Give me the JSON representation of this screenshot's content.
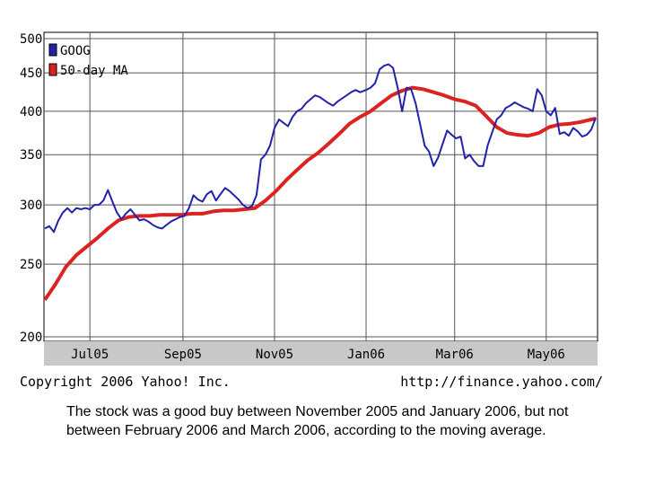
{
  "chart_data": {
    "type": "line",
    "title": "",
    "xlabel": "",
    "ylabel": "",
    "scale": "log",
    "ylim": [
      200,
      500
    ],
    "yticks": [
      "500",
      "450",
      "400",
      "350",
      "300",
      "250",
      "200"
    ],
    "ytick_values": [
      500,
      450,
      400,
      350,
      300,
      250,
      200
    ],
    "xticks": [
      "Jul05",
      "Sep05",
      "Nov05",
      "Jan06",
      "Mar06",
      "May06"
    ],
    "xtick_dates": [
      "2005-07-01",
      "2005-09-01",
      "2005-11-01",
      "2006-01-01",
      "2006-03-01",
      "2006-05-01"
    ],
    "grid": true,
    "legend_position": "top-left",
    "series": [
      {
        "name": "GOOG",
        "color": "#2222aa",
        "points": [
          [
            "2005-06-01",
            279
          ],
          [
            "2005-06-04",
            281
          ],
          [
            "2005-06-07",
            276
          ],
          [
            "2005-06-10",
            286
          ],
          [
            "2005-06-13",
            293
          ],
          [
            "2005-06-16",
            297
          ],
          [
            "2005-06-19",
            293
          ],
          [
            "2005-06-22",
            297
          ],
          [
            "2005-06-25",
            296
          ],
          [
            "2005-06-28",
            297
          ],
          [
            "2005-07-01",
            296
          ],
          [
            "2005-07-04",
            300
          ],
          [
            "2005-07-07",
            300
          ],
          [
            "2005-07-10",
            304
          ],
          [
            "2005-07-13",
            314
          ],
          [
            "2005-07-16",
            303
          ],
          [
            "2005-07-19",
            293
          ],
          [
            "2005-07-22",
            287
          ],
          [
            "2005-07-25",
            292
          ],
          [
            "2005-07-28",
            296
          ],
          [
            "2005-07-31",
            291
          ],
          [
            "2005-08-03",
            286
          ],
          [
            "2005-08-06",
            287
          ],
          [
            "2005-08-09",
            285
          ],
          [
            "2005-08-12",
            282
          ],
          [
            "2005-08-15",
            280
          ],
          [
            "2005-08-18",
            279
          ],
          [
            "2005-08-21",
            282
          ],
          [
            "2005-08-24",
            285
          ],
          [
            "2005-08-27",
            287
          ],
          [
            "2005-08-30",
            289
          ],
          [
            "2005-09-02",
            290
          ],
          [
            "2005-09-05",
            297
          ],
          [
            "2005-09-08",
            309
          ],
          [
            "2005-09-11",
            305
          ],
          [
            "2005-09-14",
            303
          ],
          [
            "2005-09-17",
            310
          ],
          [
            "2005-09-20",
            313
          ],
          [
            "2005-09-23",
            304
          ],
          [
            "2005-09-26",
            310
          ],
          [
            "2005-09-29",
            316
          ],
          [
            "2005-10-02",
            313
          ],
          [
            "2005-10-05",
            309
          ],
          [
            "2005-10-08",
            305
          ],
          [
            "2005-10-11",
            300
          ],
          [
            "2005-10-14",
            297
          ],
          [
            "2005-10-17",
            299
          ],
          [
            "2005-10-20",
            309
          ],
          [
            "2005-10-23",
            345
          ],
          [
            "2005-10-26",
            350
          ],
          [
            "2005-10-29",
            360
          ],
          [
            "2005-11-01",
            380
          ],
          [
            "2005-11-04",
            390
          ],
          [
            "2005-11-07",
            386
          ],
          [
            "2005-11-10",
            382
          ],
          [
            "2005-11-13",
            393
          ],
          [
            "2005-11-16",
            400
          ],
          [
            "2005-11-19",
            403
          ],
          [
            "2005-11-22",
            410
          ],
          [
            "2005-11-25",
            415
          ],
          [
            "2005-11-28",
            420
          ],
          [
            "2005-12-01",
            418
          ],
          [
            "2005-12-04",
            414
          ],
          [
            "2005-12-07",
            410
          ],
          [
            "2005-12-10",
            407
          ],
          [
            "2005-12-13",
            412
          ],
          [
            "2005-12-16",
            416
          ],
          [
            "2005-12-19",
            420
          ],
          [
            "2005-12-22",
            424
          ],
          [
            "2005-12-25",
            427
          ],
          [
            "2005-12-28",
            424
          ],
          [
            "2006-01-01",
            427
          ],
          [
            "2006-01-04",
            430
          ],
          [
            "2006-01-07",
            436
          ],
          [
            "2006-01-10",
            455
          ],
          [
            "2006-01-13",
            460
          ],
          [
            "2006-01-16",
            462
          ],
          [
            "2006-01-19",
            457
          ],
          [
            "2006-01-22",
            430
          ],
          [
            "2006-01-25",
            400
          ],
          [
            "2006-01-28",
            430
          ],
          [
            "2006-01-31",
            428
          ],
          [
            "2006-02-03",
            410
          ],
          [
            "2006-02-06",
            384
          ],
          [
            "2006-02-09",
            360
          ],
          [
            "2006-02-12",
            353
          ],
          [
            "2006-02-15",
            338
          ],
          [
            "2006-02-18",
            347
          ],
          [
            "2006-02-21",
            362
          ],
          [
            "2006-02-24",
            377
          ],
          [
            "2006-02-27",
            372
          ],
          [
            "2006-03-02",
            368
          ],
          [
            "2006-03-05",
            370
          ],
          [
            "2006-03-08",
            346
          ],
          [
            "2006-03-11",
            350
          ],
          [
            "2006-03-14",
            343
          ],
          [
            "2006-03-17",
            338
          ],
          [
            "2006-03-20",
            338
          ],
          [
            "2006-03-23",
            360
          ],
          [
            "2006-03-26",
            375
          ],
          [
            "2006-03-29",
            390
          ],
          [
            "2006-04-01",
            395
          ],
          [
            "2006-04-04",
            404
          ],
          [
            "2006-04-07",
            407
          ],
          [
            "2006-04-10",
            411
          ],
          [
            "2006-04-13",
            408
          ],
          [
            "2006-04-16",
            405
          ],
          [
            "2006-04-19",
            403
          ],
          [
            "2006-04-22",
            400
          ],
          [
            "2006-04-25",
            428
          ],
          [
            "2006-04-28",
            420
          ],
          [
            "2006-05-01",
            400
          ],
          [
            "2006-05-04",
            395
          ],
          [
            "2006-05-07",
            404
          ],
          [
            "2006-05-10",
            373
          ],
          [
            "2006-05-13",
            375
          ],
          [
            "2006-05-16",
            371
          ],
          [
            "2006-05-19",
            380
          ],
          [
            "2006-05-22",
            376
          ],
          [
            "2006-05-25",
            370
          ],
          [
            "2006-05-28",
            372
          ],
          [
            "2006-05-31",
            378
          ],
          [
            "2006-06-03",
            392
          ]
        ]
      },
      {
        "name": "50-day MA",
        "color": "#dd2222",
        "points": [
          [
            "2005-06-01",
            224
          ],
          [
            "2005-06-08",
            235
          ],
          [
            "2005-06-15",
            248
          ],
          [
            "2005-06-22",
            257
          ],
          [
            "2005-06-29",
            264
          ],
          [
            "2005-07-06",
            271
          ],
          [
            "2005-07-13",
            279
          ],
          [
            "2005-07-20",
            286
          ],
          [
            "2005-07-27",
            289
          ],
          [
            "2005-08-03",
            290
          ],
          [
            "2005-08-10",
            290
          ],
          [
            "2005-08-17",
            291
          ],
          [
            "2005-08-24",
            291
          ],
          [
            "2005-08-31",
            291
          ],
          [
            "2005-09-07",
            292
          ],
          [
            "2005-09-14",
            292
          ],
          [
            "2005-09-21",
            294
          ],
          [
            "2005-09-28",
            295
          ],
          [
            "2005-10-05",
            295
          ],
          [
            "2005-10-12",
            296
          ],
          [
            "2005-10-19",
            297
          ],
          [
            "2005-10-26",
            304
          ],
          [
            "2005-11-02",
            313
          ],
          [
            "2005-11-09",
            324
          ],
          [
            "2005-11-16",
            334
          ],
          [
            "2005-11-23",
            344
          ],
          [
            "2005-11-30",
            352
          ],
          [
            "2005-12-07",
            362
          ],
          [
            "2005-12-14",
            373
          ],
          [
            "2005-12-21",
            385
          ],
          [
            "2005-12-28",
            393
          ],
          [
            "2006-01-04",
            400
          ],
          [
            "2006-01-11",
            410
          ],
          [
            "2006-01-18",
            420
          ],
          [
            "2006-01-25",
            426
          ],
          [
            "2006-02-01",
            430
          ],
          [
            "2006-02-08",
            428
          ],
          [
            "2006-02-15",
            424
          ],
          [
            "2006-02-22",
            420
          ],
          [
            "2006-03-01",
            415
          ],
          [
            "2006-03-08",
            412
          ],
          [
            "2006-03-15",
            407
          ],
          [
            "2006-03-22",
            394
          ],
          [
            "2006-03-29",
            381
          ],
          [
            "2006-04-05",
            374
          ],
          [
            "2006-04-12",
            372
          ],
          [
            "2006-04-19",
            371
          ],
          [
            "2006-04-26",
            374
          ],
          [
            "2006-05-03",
            381
          ],
          [
            "2006-05-10",
            384
          ],
          [
            "2006-05-17",
            385
          ],
          [
            "2006-05-24",
            387
          ],
          [
            "2006-05-31",
            390
          ],
          [
            "2006-06-03",
            391
          ]
        ]
      }
    ]
  },
  "footer": {
    "copyright": "Copyright 2006 Yahoo! Inc.",
    "url": "http://finance.yahoo.com/"
  },
  "caption": "The stock was a good buy between November 2005 and January 2006, but not between February 2006 and March 2006, according to the moving average."
}
